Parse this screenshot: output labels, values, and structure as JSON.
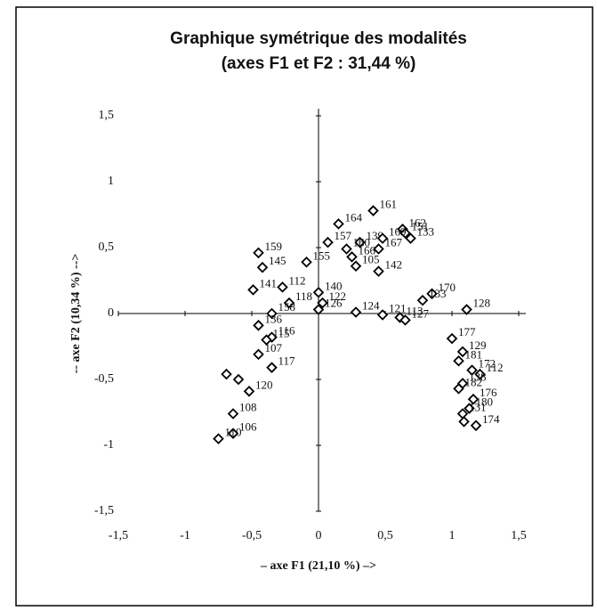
{
  "chart_data": {
    "type": "scatter",
    "title": [
      "Graphique symétrique des modalités",
      "(axes F1 et F2 : 31,44 %)"
    ],
    "x_label": "– axe F1 (21,10 %) –>",
    "y_label": "-- axe F2 (10,34 %) -->",
    "xlim": [
      -1.5,
      1.5
    ],
    "ylim": [
      -1.5,
      1.5
    ],
    "xticks": [
      {
        "value": -1.5,
        "label": "-1,5"
      },
      -1,
      {
        "value": -0.5,
        "label": "-0,5"
      },
      0,
      {
        "value": 0.5,
        "label": "0,5"
      },
      1,
      {
        "value": 1.5,
        "label": "1,5"
      }
    ],
    "yticks": [
      {
        "value": -1.5,
        "label": "-1,5"
      },
      -1,
      {
        "value": -0.5,
        "label": "-0,5"
      },
      0,
      {
        "value": 0.5,
        "label": "0,5"
      },
      1,
      {
        "value": 1.5,
        "label": "1,5"
      }
    ],
    "color": "#000000",
    "x": [
      0.41,
      0.15,
      0.63,
      0.65,
      0.69,
      0.31,
      0.21,
      0.48,
      0.45,
      0.25,
      0.28,
      0.45,
      0.07,
      -0.45,
      -0.09,
      -0.42,
      -0.49,
      -0.27,
      0.0,
      0.03,
      -0.22,
      0.0,
      0.28,
      0.48,
      0.61,
      0.65,
      0.85,
      0.78,
      1.11,
      -0.35,
      -0.45,
      -0.35,
      -0.39,
      -0.45,
      -0.35,
      -0.52,
      -0.64,
      -0.64,
      -0.75,
      -0.69,
      -0.6,
      1.0,
      1.08,
      1.05,
      1.15,
      1.21,
      1.08,
      1.05,
      1.16,
      1.13,
      1.08,
      1.18,
      1.09
    ],
    "values": [
      0.78,
      0.68,
      0.64,
      0.61,
      0.57,
      0.54,
      0.49,
      0.57,
      0.49,
      0.43,
      0.36,
      0.32,
      0.54,
      0.46,
      0.39,
      0.35,
      0.18,
      0.2,
      0.16,
      0.08,
      0.08,
      0.03,
      0.01,
      -0.01,
      -0.03,
      -0.05,
      0.15,
      0.1,
      0.03,
      0.0,
      -0.09,
      -0.18,
      -0.2,
      -0.31,
      -0.41,
      -0.59,
      -0.76,
      -0.91,
      -0.95,
      -0.46,
      -0.5,
      -0.19,
      -0.29,
      -0.36,
      -0.43,
      -0.46,
      -0.53,
      -0.57,
      -0.65,
      -0.72,
      -0.76,
      -0.85,
      -0.82
    ],
    "point_labels": [
      "161",
      "164",
      "162",
      "151",
      "133",
      "139",
      "160",
      "169",
      "167",
      "166",
      "105",
      "142",
      "157",
      "159",
      "155",
      "145",
      "141",
      "112",
      "140",
      "122",
      "118",
      "126",
      "124",
      "121",
      "113",
      "127",
      "170",
      "133",
      "128",
      "158",
      "136",
      "116",
      "115",
      "107",
      "117",
      "120",
      "108",
      "106",
      "110",
      null,
      null,
      "177",
      "129",
      "181",
      "172",
      "112",
      "138",
      "182",
      "176",
      "180",
      "131",
      "174",
      null
    ]
  }
}
